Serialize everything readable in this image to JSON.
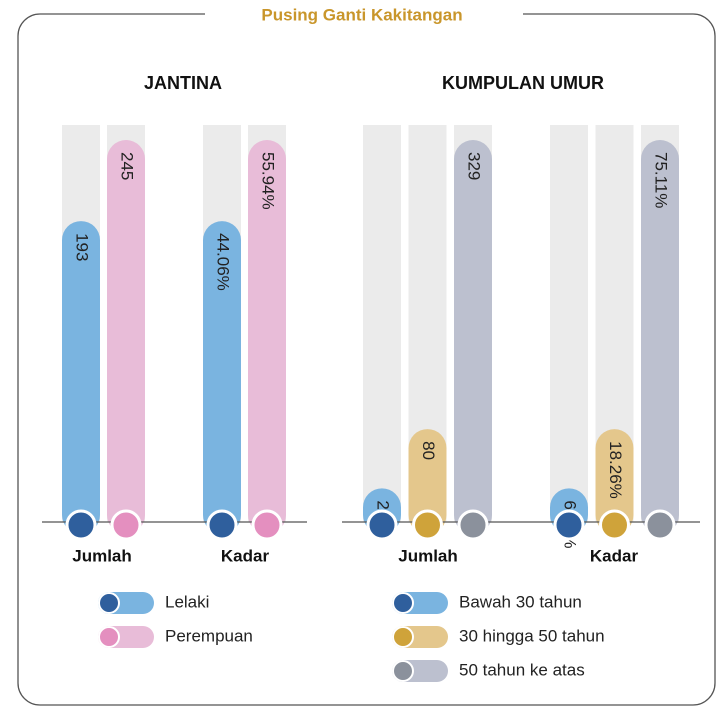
{
  "title": "Pusing Ganti Kakitangan",
  "chart_data": [
    {
      "type": "bar",
      "title": "JANTINA",
      "categories": [
        "Jumlah",
        "Kadar"
      ],
      "series": [
        {
          "name": "Lelaki",
          "color": "#7ab4e0",
          "dot_color": "#2f5f9d",
          "values": [
            193,
            44.06
          ],
          "value_labels": [
            "193",
            "44.06%"
          ]
        },
        {
          "name": "Perempuan",
          "color": "#e8bcd8",
          "dot_color": "#e48fbf",
          "values": [
            245,
            55.94
          ],
          "value_labels": [
            "245",
            "55.94%"
          ]
        }
      ]
    },
    {
      "type": "bar",
      "title": "KUMPULAN UMUR",
      "categories": [
        "Jumlah",
        "Kadar"
      ],
      "series": [
        {
          "name": "Bawah 30 tahun",
          "color": "#7ab4e0",
          "dot_color": "#2f5f9d",
          "values": [
            29,
            6.62
          ],
          "value_labels": [
            "29",
            "6.62%"
          ]
        },
        {
          "name": "30 hingga 50 tahun",
          "color": "#e4c78c",
          "dot_color": "#cfa33a",
          "values": [
            80,
            18.26
          ],
          "value_labels": [
            "80",
            "18.26%"
          ]
        },
        {
          "name": "50 tahun ke atas",
          "color": "#bcc0cf",
          "dot_color": "#8b919c",
          "values": [
            329,
            75.11
          ],
          "value_labels": [
            "329",
            "75.11%"
          ]
        }
      ]
    }
  ]
}
